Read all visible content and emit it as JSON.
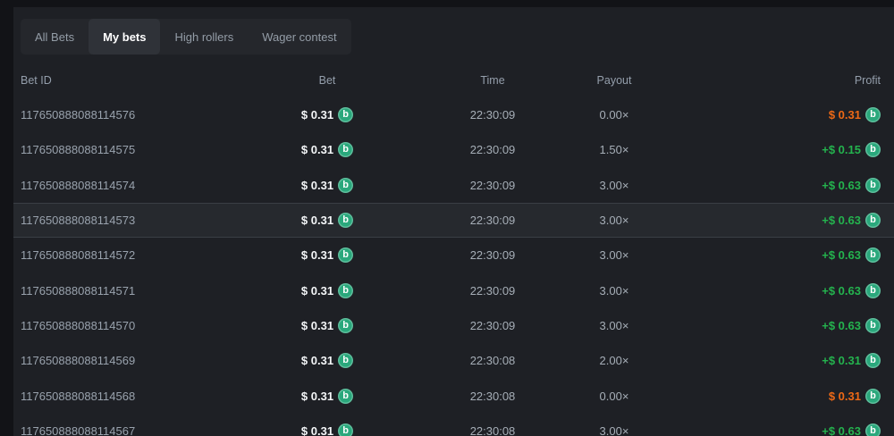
{
  "tabs": [
    {
      "label": "All Bets",
      "active": false
    },
    {
      "label": "My bets",
      "active": true
    },
    {
      "label": "High rollers",
      "active": false
    },
    {
      "label": "Wager contest",
      "active": false
    }
  ],
  "icons": {
    "coin_symbol": "b",
    "coin_name": "coin-icon"
  },
  "colors": {
    "win": "#24b34e",
    "loss": "#ed6916",
    "coin": "#2aa87c",
    "panel_bg": "#1e2025",
    "highlight_row_bg": "#26292e"
  },
  "table": {
    "headers": {
      "bet_id": "Bet ID",
      "bet": "Bet",
      "time": "Time",
      "payout": "Payout",
      "profit": "Profit"
    },
    "rows": [
      {
        "id": "117650888088114576",
        "bet": "$ 0.31",
        "time": "22:30:09",
        "payout": "0.00×",
        "profit": "$ 0.31",
        "profit_type": "loss",
        "highlighted": false
      },
      {
        "id": "117650888088114575",
        "bet": "$ 0.31",
        "time": "22:30:09",
        "payout": "1.50×",
        "profit": "+$ 0.15",
        "profit_type": "win",
        "highlighted": false
      },
      {
        "id": "117650888088114574",
        "bet": "$ 0.31",
        "time": "22:30:09",
        "payout": "3.00×",
        "profit": "+$ 0.63",
        "profit_type": "win",
        "highlighted": false
      },
      {
        "id": "117650888088114573",
        "bet": "$ 0.31",
        "time": "22:30:09",
        "payout": "3.00×",
        "profit": "+$ 0.63",
        "profit_type": "win",
        "highlighted": true
      },
      {
        "id": "117650888088114572",
        "bet": "$ 0.31",
        "time": "22:30:09",
        "payout": "3.00×",
        "profit": "+$ 0.63",
        "profit_type": "win",
        "highlighted": false
      },
      {
        "id": "117650888088114571",
        "bet": "$ 0.31",
        "time": "22:30:09",
        "payout": "3.00×",
        "profit": "+$ 0.63",
        "profit_type": "win",
        "highlighted": false
      },
      {
        "id": "117650888088114570",
        "bet": "$ 0.31",
        "time": "22:30:09",
        "payout": "3.00×",
        "profit": "+$ 0.63",
        "profit_type": "win",
        "highlighted": false
      },
      {
        "id": "117650888088114569",
        "bet": "$ 0.31",
        "time": "22:30:08",
        "payout": "2.00×",
        "profit": "+$ 0.31",
        "profit_type": "win",
        "highlighted": false
      },
      {
        "id": "117650888088114568",
        "bet": "$ 0.31",
        "time": "22:30:08",
        "payout": "0.00×",
        "profit": "$ 0.31",
        "profit_type": "loss",
        "highlighted": false
      },
      {
        "id": "117650888088114567",
        "bet": "$ 0.31",
        "time": "22:30:08",
        "payout": "3.00×",
        "profit": "+$ 0.63",
        "profit_type": "win",
        "highlighted": false
      }
    ]
  }
}
